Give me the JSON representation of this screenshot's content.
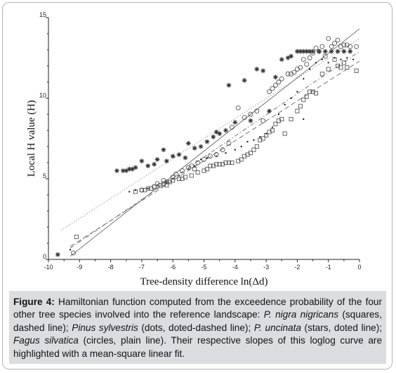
{
  "chart_data": {
    "type": "scatter",
    "xlabel": "Tree-density difference ln(Δd)",
    "ylabel": "Local H value (H)",
    "xlim": [
      -10,
      0
    ],
    "ylim": [
      0,
      15
    ],
    "xticks": [
      "-10",
      "-9",
      "-8",
      "-7",
      "-6",
      "-5",
      "-4",
      "-3",
      "-2",
      "-1",
      "0"
    ],
    "yticks": [
      "0",
      "5",
      "10",
      "15"
    ],
    "grid": false,
    "legend": "none",
    "series": [
      {
        "marker": "square",
        "line": "dashed",
        "points": [
          [
            -9.1,
            1.4
          ],
          [
            -7.2,
            4.2
          ],
          [
            -7.0,
            4.3
          ],
          [
            -6.9,
            4.3
          ],
          [
            -6.7,
            4.4
          ],
          [
            -6.6,
            4.5
          ],
          [
            -6.4,
            4.6
          ],
          [
            -6.3,
            4.7
          ],
          [
            -6.2,
            4.6
          ],
          [
            -6.1,
            4.8
          ],
          [
            -6.0,
            4.9
          ],
          [
            -5.8,
            5.0
          ],
          [
            -5.7,
            5.0
          ],
          [
            -5.6,
            5.1
          ],
          [
            -5.4,
            5.2
          ],
          [
            -5.3,
            5.6
          ],
          [
            -5.2,
            5.4
          ],
          [
            -5.0,
            5.5
          ],
          [
            -4.9,
            5.6
          ],
          [
            -4.8,
            5.8
          ],
          [
            -4.7,
            5.8
          ],
          [
            -4.6,
            5.9
          ],
          [
            -4.5,
            5.9
          ],
          [
            -4.4,
            5.9
          ],
          [
            -4.3,
            6.0
          ],
          [
            -4.2,
            6.0
          ],
          [
            -4.1,
            6.0
          ],
          [
            -3.9,
            6.1
          ],
          [
            -3.8,
            6.2
          ],
          [
            -3.7,
            6.4
          ],
          [
            -3.6,
            6.5
          ],
          [
            -3.5,
            6.6
          ],
          [
            -3.4,
            6.8
          ],
          [
            -3.3,
            7.0
          ],
          [
            -3.2,
            7.4
          ],
          [
            -3.1,
            7.5
          ],
          [
            -3.0,
            7.7
          ],
          [
            -2.9,
            7.9
          ],
          [
            -2.8,
            8.0
          ],
          [
            -2.7,
            8.4
          ],
          [
            -2.6,
            8.6
          ],
          [
            -2.5,
            8.7
          ],
          [
            -2.4,
            7.8
          ],
          [
            -2.2,
            8.7
          ],
          [
            -2.0,
            9.2
          ],
          [
            -1.9,
            9.5
          ],
          [
            -1.8,
            9.9
          ],
          [
            -1.7,
            10.1
          ],
          [
            -1.6,
            10.4
          ],
          [
            -1.5,
            10.4
          ],
          [
            -1.4,
            10.3
          ],
          [
            -1.2,
            11.5
          ],
          [
            -1.0,
            11.8
          ],
          [
            -0.8,
            12.4
          ],
          [
            -0.7,
            12.0
          ],
          [
            -0.6,
            11.9
          ],
          [
            -0.5,
            12.2
          ],
          [
            -0.4,
            11.9
          ],
          [
            -0.1,
            11.7
          ]
        ]
      },
      {
        "marker": "dot",
        "line": "dot-dashed",
        "points": [
          [
            -9.3,
            0.6
          ],
          [
            -7.4,
            4.2
          ],
          [
            -7.2,
            4.3
          ],
          [
            -6.8,
            4.4
          ],
          [
            -6.5,
            4.6
          ],
          [
            -6.2,
            4.8
          ],
          [
            -6.0,
            5.0
          ],
          [
            -5.8,
            5.2
          ],
          [
            -5.5,
            5.6
          ],
          [
            -5.3,
            5.8
          ],
          [
            -5.1,
            6.2
          ],
          [
            -4.9,
            6.3
          ],
          [
            -4.6,
            6.4
          ],
          [
            -4.3,
            6.6
          ],
          [
            -4.0,
            6.8
          ],
          [
            -3.8,
            7.0
          ],
          [
            -3.6,
            7.3
          ],
          [
            -3.4,
            7.4
          ],
          [
            -3.2,
            7.6
          ],
          [
            -3.0,
            7.8
          ],
          [
            -2.8,
            8.2
          ],
          [
            -2.6,
            9.0
          ],
          [
            -2.4,
            9.6
          ],
          [
            -2.2,
            10.0
          ],
          [
            -2.0,
            10.4
          ],
          [
            -1.8,
            11.2
          ],
          [
            -1.6,
            11.8
          ],
          [
            -1.4,
            12.2
          ],
          [
            -1.2,
            12.4
          ],
          [
            -1.0,
            12.2
          ],
          [
            -0.8,
            12.5
          ],
          [
            -0.6,
            12.4
          ],
          [
            -0.4,
            12.5
          ],
          [
            -0.2,
            12.4
          ],
          [
            -1.8,
            8.7
          ]
        ]
      },
      {
        "marker": "star",
        "line": "dotted",
        "points": [
          [
            -9.7,
            0.3
          ],
          [
            -7.8,
            5.5
          ],
          [
            -7.6,
            5.5
          ],
          [
            -7.5,
            5.5
          ],
          [
            -7.4,
            5.6
          ],
          [
            -7.3,
            5.6
          ],
          [
            -7.2,
            5.7
          ],
          [
            -7.0,
            6.1
          ],
          [
            -6.8,
            5.8
          ],
          [
            -6.6,
            5.9
          ],
          [
            -6.5,
            6.2
          ],
          [
            -6.3,
            6.8
          ],
          [
            -6.2,
            6.1
          ],
          [
            -6.0,
            6.4
          ],
          [
            -5.8,
            6.5
          ],
          [
            -5.6,
            6.3
          ],
          [
            -5.5,
            7.2
          ],
          [
            -5.3,
            6.9
          ],
          [
            -5.1,
            7.0
          ],
          [
            -4.9,
            7.3
          ],
          [
            -4.7,
            7.6
          ],
          [
            -4.6,
            7.9
          ],
          [
            -4.5,
            7.8
          ],
          [
            -4.3,
            8.0
          ],
          [
            -4.2,
            10.8
          ],
          [
            -4.0,
            8.5
          ],
          [
            -3.7,
            11.1
          ],
          [
            -3.5,
            8.6
          ],
          [
            -3.3,
            11.8
          ],
          [
            -3.1,
            11.7
          ],
          [
            -2.9,
            9.2
          ],
          [
            -2.7,
            11.3
          ],
          [
            -2.5,
            12.4
          ],
          [
            -2.3,
            12.5
          ],
          [
            -2.2,
            12.6
          ],
          [
            -2.0,
            12.9
          ],
          [
            -1.9,
            12.9
          ],
          [
            -1.8,
            12.9
          ],
          [
            -1.7,
            12.9
          ],
          [
            -1.6,
            12.9
          ],
          [
            -1.5,
            12.9
          ],
          [
            -1.3,
            12.9
          ],
          [
            -1.1,
            12.9
          ],
          [
            -0.9,
            12.9
          ],
          [
            -0.7,
            12.9
          ],
          [
            -0.5,
            12.9
          ],
          [
            -0.3,
            12.9
          ]
        ]
      },
      {
        "marker": "circle",
        "line": "solid",
        "points": [
          [
            -9.2,
            0.4
          ],
          [
            -7.0,
            4.3
          ],
          [
            -6.8,
            4.4
          ],
          [
            -6.6,
            4.5
          ],
          [
            -6.5,
            4.7
          ],
          [
            -6.3,
            4.9
          ],
          [
            -6.2,
            4.8
          ],
          [
            -6.0,
            5.1
          ],
          [
            -5.9,
            5.3
          ],
          [
            -5.7,
            5.5
          ],
          [
            -5.5,
            5.7
          ],
          [
            -5.4,
            5.8
          ],
          [
            -5.2,
            6.0
          ],
          [
            -5.0,
            6.2
          ],
          [
            -4.8,
            6.4
          ],
          [
            -4.6,
            6.5
          ],
          [
            -4.4,
            6.8
          ],
          [
            -4.2,
            7.2
          ],
          [
            -4.1,
            8.2
          ],
          [
            -3.9,
            9.4
          ],
          [
            -3.7,
            8.8
          ],
          [
            -3.5,
            9.0
          ],
          [
            -3.3,
            9.2
          ],
          [
            -3.1,
            8.6
          ],
          [
            -2.9,
            10.4
          ],
          [
            -2.8,
            10.6
          ],
          [
            -2.7,
            10.8
          ],
          [
            -2.6,
            11.0
          ],
          [
            -2.5,
            11.2
          ],
          [
            -2.3,
            11.5
          ],
          [
            -2.2,
            11.5
          ],
          [
            -2.1,
            11.6
          ],
          [
            -2.0,
            11.8
          ],
          [
            -1.9,
            11.9
          ],
          [
            -1.8,
            12.4
          ],
          [
            -1.7,
            12.1
          ],
          [
            -1.6,
            12.5
          ],
          [
            -1.5,
            12.8
          ],
          [
            -1.4,
            13.1
          ],
          [
            -1.3,
            12.9
          ],
          [
            -1.2,
            13.2
          ],
          [
            -1.1,
            12.6
          ],
          [
            -1.0,
            13.7
          ],
          [
            -0.9,
            13.2
          ],
          [
            -0.8,
            13.4
          ],
          [
            -0.7,
            13.6
          ],
          [
            -0.6,
            13.2
          ],
          [
            -0.5,
            13.3
          ],
          [
            -0.4,
            13.3
          ],
          [
            -0.3,
            13.2
          ],
          [
            -0.1,
            13.2
          ]
        ]
      }
    ],
    "fits": [
      {
        "line": "dashed",
        "x": [
          -9.3,
          0
        ],
        "y": [
          0.8,
          12.3
        ]
      },
      {
        "line": "dot-dashed",
        "x": [
          -9.3,
          0
        ],
        "y": [
          0.7,
          12.9
        ]
      },
      {
        "line": "dotted",
        "x": [
          -9.6,
          0
        ],
        "y": [
          1.8,
          13.7
        ]
      },
      {
        "line": "solid",
        "x": [
          -9.3,
          0
        ],
        "y": [
          0.2,
          14.3
        ]
      }
    ]
  },
  "caption": {
    "figure_label": "Figure 4:",
    "text_1": " Hamiltonian function computed from the exceedence probability of the four other tree species involved into the reference landscape: ",
    "species_1": "P. nigra nigricans",
    "text_2": " (squares, dashed line); ",
    "species_2": "Pinus sylvestris",
    "text_3": " (dots, doted-dashed line); ",
    "species_3": "P. uncinata",
    "text_4": " (stars, doted line); ",
    "species_4": "Fagus silvatica",
    "text_5": " (circles, plain line). Their respective slopes of this loglog curve are highlighted with a mean-square linear fit."
  },
  "colors": {
    "caption_background": "#dcdde0",
    "axis": "#222222",
    "markers": "#555555"
  }
}
